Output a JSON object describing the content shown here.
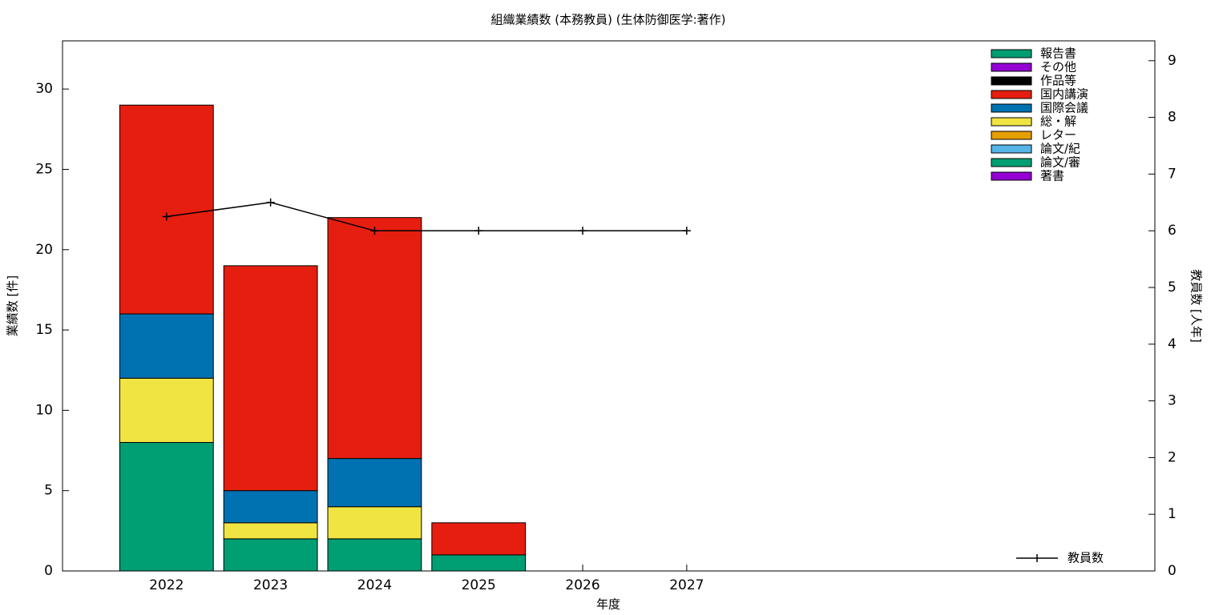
{
  "chart_data": {
    "type": "bar",
    "stacked": true,
    "title": "組織業績数 (本務教員) (生体防御医学:著作)",
    "x_label": "年度",
    "y_label": "業績数 [件]",
    "y2_label": "教員数 [人年]",
    "x": [
      2022,
      2023,
      2024,
      2025,
      2026,
      2027
    ],
    "xlim": [
      2021,
      2031.5
    ],
    "xticks": [
      2022,
      2023,
      2024,
      2025,
      2026,
      2027
    ],
    "ylim": [
      0,
      33
    ],
    "yticks": [
      0,
      5,
      10,
      15,
      20,
      25,
      30
    ],
    "y2lim": [
      0,
      9.35
    ],
    "y2ticks": [
      0,
      1,
      2,
      3,
      4,
      5,
      6,
      7,
      8,
      9
    ],
    "series": [
      {
        "name": "報告書",
        "color": "#009e73",
        "values": [
          0,
          0,
          0,
          0,
          0,
          0
        ]
      },
      {
        "name": "その他",
        "color": "#9400d3",
        "values": [
          0,
          0,
          0,
          0,
          0,
          0
        ]
      },
      {
        "name": "作品等",
        "color": "#000000",
        "values": [
          0,
          0,
          0,
          0,
          0,
          0
        ]
      },
      {
        "name": "国内講演",
        "color": "#e51e10",
        "values": [
          13,
          14,
          15,
          2,
          0,
          0
        ]
      },
      {
        "name": "国際会議",
        "color": "#0072b2",
        "values": [
          4,
          2,
          3,
          0,
          0,
          0
        ]
      },
      {
        "name": "総・解",
        "color": "#f0e442",
        "values": [
          4,
          1,
          2,
          0,
          0,
          0
        ]
      },
      {
        "name": "レター",
        "color": "#e69f00",
        "values": [
          0,
          0,
          0,
          0,
          0,
          0
        ]
      },
      {
        "name": "論文/紀",
        "color": "#56b4e9",
        "values": [
          0,
          0,
          0,
          0,
          0,
          0
        ]
      },
      {
        "name": "論文/審",
        "color": "#009e73",
        "values": [
          8,
          2,
          2,
          1,
          0,
          0
        ]
      },
      {
        "name": "著書",
        "color": "#9400d3",
        "values": [
          0,
          0,
          0,
          0,
          0,
          0
        ]
      },
      {
        "name": "教員数",
        "type": "line",
        "axis": "y2",
        "color": "#000000",
        "values": [
          6.25,
          6.5,
          6,
          6,
          6,
          6
        ]
      }
    ]
  }
}
